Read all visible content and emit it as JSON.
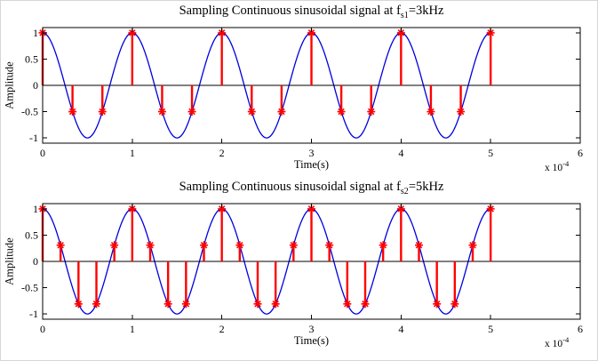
{
  "figure": {
    "background_color": "#ffffff",
    "num_subplots": 2
  },
  "chart_data": [
    {
      "type": "line+stem",
      "title": "Sampling Continuous sinusoidal signal at f_s1=3kHz",
      "title_prefix": "Sampling Continuous sinusoidal signal at f",
      "title_sub": "s1",
      "title_suffix": "=3kHz",
      "xlabel": "Time(s)",
      "ylabel": "Amplitude",
      "x_exp_prefix": "x 10",
      "x_exp_sup": "-4",
      "xlim": [
        0,
        6
      ],
      "ylim": [
        -1.1,
        1.1
      ],
      "x_ticks": [
        0,
        1,
        2,
        3,
        4,
        5,
        6
      ],
      "x_tick_labels": [
        "0",
        "1",
        "2",
        "3",
        "4",
        "5",
        "6"
      ],
      "y_ticks": [
        -1,
        -0.5,
        0,
        0.5,
        1
      ],
      "y_tick_labels": [
        "-1",
        "-0.5",
        "0",
        "0.5",
        "1"
      ],
      "grid": false,
      "baseline": {
        "y": 0,
        "color": "#000000"
      },
      "continuous_signal": {
        "shape": "cosine",
        "amplitude": 1,
        "period_axis_units": 1,
        "x_range": [
          0,
          5
        ],
        "color": "#0000dd"
      },
      "sampling": {
        "rate_label": "3kHz",
        "marker": "asterisk",
        "color": "#ff0000",
        "x": [
          0,
          0.3333,
          0.6667,
          1,
          1.3333,
          1.6667,
          2,
          2.3333,
          2.6667,
          3,
          3.3333,
          3.6667,
          4,
          4.3333,
          4.6667,
          5
        ],
        "y": [
          1,
          -0.5,
          -0.5,
          1,
          -0.5,
          -0.5,
          1,
          -0.5,
          -0.5,
          1,
          -0.5,
          -0.5,
          1,
          -0.5,
          -0.5,
          1
        ]
      }
    },
    {
      "type": "line+stem",
      "title": "Sampling Continuous sinusoidal signal at f_s2=5kHz",
      "title_prefix": "Sampling Continuous sinusoidal signal at f",
      "title_sub": "s2",
      "title_suffix": "=5kHz",
      "xlabel": "Time(s)",
      "ylabel": "Amplitude",
      "x_exp_prefix": "x 10",
      "x_exp_sup": "-4",
      "xlim": [
        0,
        6
      ],
      "ylim": [
        -1.1,
        1.1
      ],
      "x_ticks": [
        0,
        1,
        2,
        3,
        4,
        5,
        6
      ],
      "x_tick_labels": [
        "0",
        "1",
        "2",
        "3",
        "4",
        "5",
        "6"
      ],
      "y_ticks": [
        -1,
        -0.5,
        0,
        0.5,
        1
      ],
      "y_tick_labels": [
        "-1",
        "-0.5",
        "0",
        "0.5",
        "1"
      ],
      "grid": false,
      "baseline": {
        "y": 0,
        "color": "#000000"
      },
      "continuous_signal": {
        "shape": "cosine",
        "amplitude": 1,
        "period_axis_units": 1,
        "x_range": [
          0,
          5
        ],
        "color": "#0000dd"
      },
      "sampling": {
        "rate_label": "5kHz",
        "marker": "asterisk",
        "color": "#ff0000",
        "x": [
          0,
          0.2,
          0.4,
          0.6,
          0.8,
          1,
          1.2,
          1.4,
          1.6,
          1.8,
          2,
          2.2,
          2.4,
          2.6,
          2.8,
          3,
          3.2,
          3.4,
          3.6,
          3.8,
          4,
          4.2,
          4.4,
          4.6,
          4.8,
          5
        ],
        "y": [
          1,
          0.309,
          -0.809,
          -0.809,
          0.309,
          1,
          0.309,
          -0.809,
          -0.809,
          0.309,
          1,
          0.309,
          -0.809,
          -0.809,
          0.309,
          1,
          0.309,
          -0.809,
          -0.809,
          0.309,
          1,
          0.309,
          -0.809,
          -0.809,
          0.309,
          1
        ]
      }
    }
  ]
}
